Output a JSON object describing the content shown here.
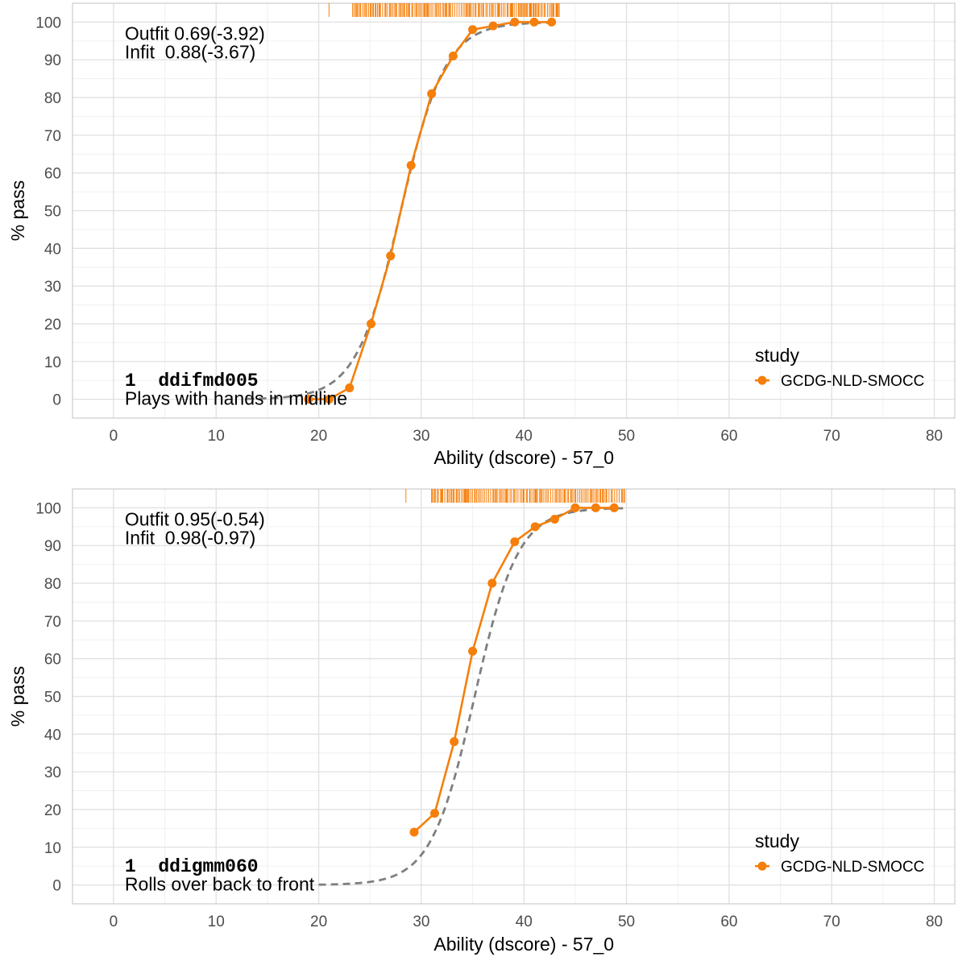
{
  "chart_data": [
    {
      "type": "line",
      "xlabel": "Ability (dscore) - 57_0",
      "ylabel": "% pass",
      "xlim": [
        -4,
        82
      ],
      "ylim": [
        -5,
        105
      ],
      "x_ticks": [
        0,
        10,
        20,
        30,
        40,
        50,
        60,
        70,
        80
      ],
      "y_ticks": [
        0,
        10,
        20,
        30,
        40,
        50,
        60,
        70,
        80,
        90,
        100
      ],
      "grid": true,
      "legend_position": "right",
      "legend_title": "study",
      "fit_text": [
        "Outfit 0.69(-3.92)",
        "Infit  0.88(-3.67)"
      ],
      "item_code": "1  ddifmd005",
      "item_label": "Plays with hands in midline",
      "series": [
        {
          "name": "GCDG-NLD-SMOCC",
          "color": "#f57f0a",
          "x": [
            19,
            21,
            23,
            25.1,
            27,
            29,
            31,
            33.1,
            35,
            37,
            39.1,
            41,
            42.7
          ],
          "y": [
            0,
            0,
            3,
            20,
            38,
            62,
            81,
            91,
            98,
            99,
            100,
            100,
            100
          ]
        }
      ],
      "model_curve": {
        "style": "dashed",
        "color": "#7f7f7f",
        "midpoint": 28,
        "slope": 0.46,
        "x_range": [
          13,
          43
        ]
      },
      "rug": {
        "color": "#f57f0a",
        "x_range": [
          21,
          43.5
        ],
        "dense_from": 23.3
      }
    },
    {
      "type": "line",
      "xlabel": "Ability (dscore) - 57_0",
      "ylabel": "% pass",
      "xlim": [
        -4,
        82
      ],
      "ylim": [
        -5,
        105
      ],
      "x_ticks": [
        0,
        10,
        20,
        30,
        40,
        50,
        60,
        70,
        80
      ],
      "y_ticks": [
        0,
        10,
        20,
        30,
        40,
        50,
        60,
        70,
        80,
        90,
        100
      ],
      "grid": true,
      "legend_position": "right",
      "legend_title": "study",
      "fit_text": [
        "Outfit 0.95(-0.54)",
        "Infit  0.98(-0.97)"
      ],
      "item_code": "1  ddigmm060",
      "item_label": "Rolls over back to front",
      "series": [
        {
          "name": "GCDG-NLD-SMOCC",
          "color": "#f57f0a",
          "x": [
            29.3,
            31.3,
            33.2,
            35,
            36.9,
            39.1,
            41.1,
            43,
            45,
            47,
            48.8
          ],
          "y": [
            14,
            19,
            38,
            62,
            80,
            91,
            95,
            97,
            100,
            100,
            100
          ]
        }
      ],
      "model_curve": {
        "style": "dashed",
        "color": "#7f7f7f",
        "midpoint": 35.2,
        "slope": 0.47,
        "x_range": [
          20,
          50
        ]
      },
      "rug": {
        "color": "#f57f0a",
        "x_range": [
          28.5,
          50
        ],
        "dense_from": 31
      }
    }
  ]
}
